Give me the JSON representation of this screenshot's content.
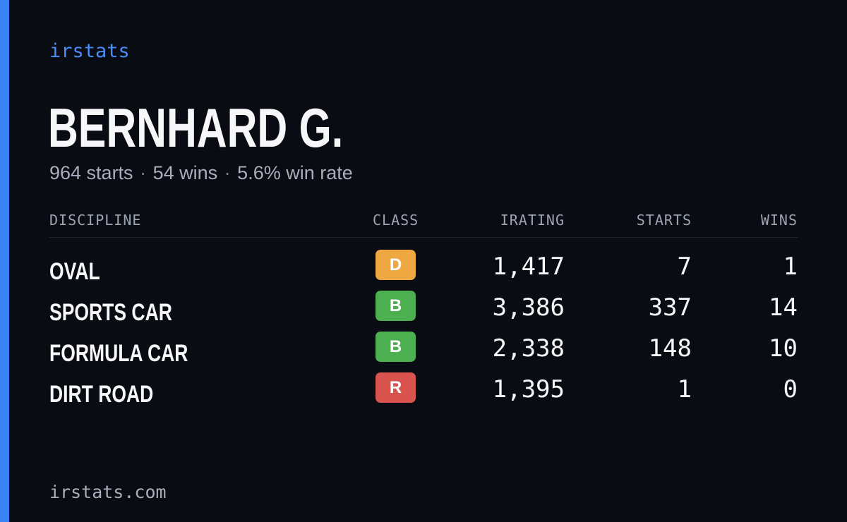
{
  "brand": "irstats",
  "driver": {
    "name": "BERNHARD G.",
    "starts": "964 starts",
    "wins": "54 wins",
    "win_rate": "5.6% win rate",
    "separator": "·"
  },
  "table": {
    "headers": {
      "discipline": "DISCIPLINE",
      "class": "CLASS",
      "irating": "IRATING",
      "starts": "STARTS",
      "wins": "WINS"
    },
    "rows": [
      {
        "discipline": "OVAL",
        "class": "D",
        "class_color": "#efa742",
        "irating": "1,417",
        "starts": "7",
        "wins": "1"
      },
      {
        "discipline": "SPORTS CAR",
        "class": "B",
        "class_color": "#4caf50",
        "irating": "3,386",
        "starts": "337",
        "wins": "14"
      },
      {
        "discipline": "FORMULA CAR",
        "class": "B",
        "class_color": "#4caf50",
        "irating": "2,338",
        "starts": "148",
        "wins": "10"
      },
      {
        "discipline": "DIRT ROAD",
        "class": "R",
        "class_color": "#d9534f",
        "irating": "1,395",
        "starts": "1",
        "wins": "0"
      }
    ]
  },
  "footer": "irstats.com",
  "colors": {
    "background": "#0a0c14",
    "accent": "#3b82f6"
  }
}
